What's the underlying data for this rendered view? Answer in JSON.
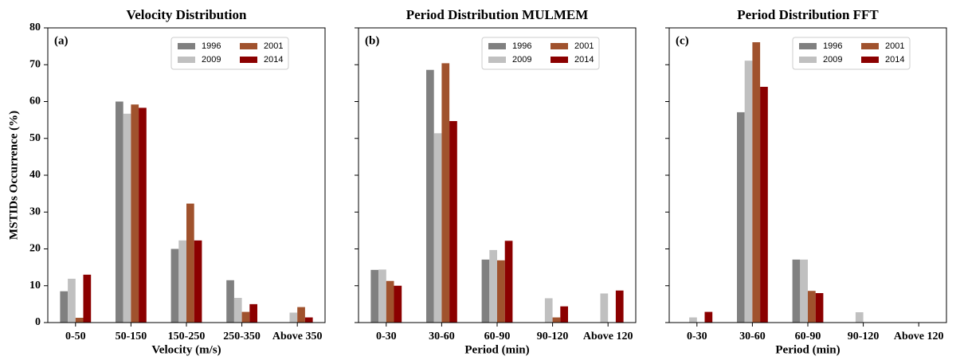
{
  "chart_data": [
    {
      "type": "bar",
      "title": "Velocity Distribution",
      "panel_label": "(a)",
      "xlabel": "Velocity (m/s)",
      "ylabel": "MSTIDs Occurrence (%)",
      "categories": [
        "0-50",
        "50-150",
        "150-250",
        "250-350",
        "Above 350"
      ],
      "series": [
        {
          "name": "1996",
          "color": "#808080",
          "values": [
            8.5,
            60,
            20,
            11.5,
            0
          ]
        },
        {
          "name": "2009",
          "color": "#c0c0c0",
          "values": [
            11.9,
            56.7,
            22.3,
            6.7,
            2.7
          ]
        },
        {
          "name": "2001",
          "color": "#a0522d",
          "values": [
            1.3,
            59.2,
            32.3,
            2.9,
            4.2
          ]
        },
        {
          "name": "2014",
          "color": "#8b0000",
          "values": [
            13,
            58.3,
            22.3,
            5,
            1.4
          ]
        }
      ],
      "ylim": [
        0,
        80
      ],
      "yticks": [
        0,
        10,
        20,
        30,
        40,
        50,
        60,
        70,
        80
      ],
      "show_ytick_labels": true,
      "legend": "upper right"
    },
    {
      "type": "bar",
      "title": "Period Distribution MULMEM",
      "panel_label": "(b)",
      "xlabel": "Period (min)",
      "categories": [
        "0-30",
        "30-60",
        "60-90",
        "90-120",
        "Above 120"
      ],
      "series": [
        {
          "name": "1996",
          "color": "#808080",
          "values": [
            14.3,
            68.6,
            17.1,
            0,
            0
          ]
        },
        {
          "name": "2009",
          "color": "#c0c0c0",
          "values": [
            14.4,
            51.4,
            19.7,
            6.6,
            7.9
          ]
        },
        {
          "name": "2001",
          "color": "#a0522d",
          "values": [
            11.3,
            70.4,
            16.9,
            1.4,
            0
          ]
        },
        {
          "name": "2014",
          "color": "#8b0000",
          "values": [
            10,
            54.7,
            22.2,
            4.4,
            8.7
          ]
        }
      ],
      "ylim": [
        0,
        80
      ],
      "yticks": [
        0,
        10,
        20,
        30,
        40,
        50,
        60,
        70,
        80
      ],
      "show_ytick_labels": false,
      "legend": "upper right"
    },
    {
      "type": "bar",
      "title": "Period Distribution FFT",
      "panel_label": "(c)",
      "xlabel": "Period (min)",
      "categories": [
        "0-30",
        "30-60",
        "60-90",
        "90-120",
        "Above 120"
      ],
      "series": [
        {
          "name": "1996",
          "color": "#808080",
          "values": [
            0,
            57.1,
            17.1,
            0,
            0
          ]
        },
        {
          "name": "2009",
          "color": "#c0c0c0",
          "values": [
            1.4,
            71.1,
            17.1,
            2.8,
            0
          ]
        },
        {
          "name": "2001",
          "color": "#a0522d",
          "values": [
            0,
            76.1,
            8.6,
            0,
            0
          ]
        },
        {
          "name": "2014",
          "color": "#8b0000",
          "values": [
            2.9,
            64,
            8,
            0,
            0
          ]
        }
      ],
      "ylim": [
        0,
        80
      ],
      "yticks": [
        0,
        10,
        20,
        30,
        40,
        50,
        60,
        70,
        80
      ],
      "show_ytick_labels": false,
      "legend": "upper right"
    }
  ]
}
